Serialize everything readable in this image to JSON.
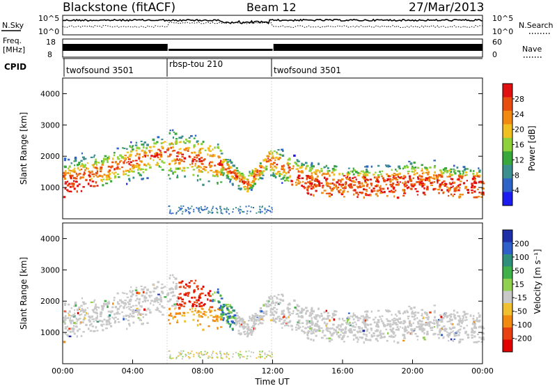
{
  "header": {
    "title": "Blackstone (fitACF)",
    "beam": "Beam 12",
    "date": "27/Mar/2013"
  },
  "chart_data": [
    {
      "type": "line",
      "panel": "noise",
      "labels_left": [
        "N.Sky",
        "10^5",
        "10^0"
      ],
      "labels_right": [
        "10^5",
        "10^0",
        "N.Search"
      ],
      "series": [
        {
          "name": "N.Sky",
          "style": "solid"
        },
        {
          "name": "N.Search",
          "style": "dotted"
        }
      ]
    },
    {
      "type": "line",
      "panel": "frequency",
      "labels_left": [
        "Freq.",
        "[MHz]",
        "18",
        "8"
      ],
      "labels_right": [
        "60",
        "0",
        "Nave"
      ],
      "x": [
        0,
        6.0,
        6.05,
        12.0,
        12.05,
        24
      ],
      "freq_level": [
        "high",
        "high",
        "low",
        "low",
        "high",
        "high"
      ],
      "series": [
        {
          "name": "Nave",
          "style": "dotted"
        }
      ]
    },
    {
      "type": "table",
      "panel": "cpid",
      "label": "CPID",
      "segments": [
        {
          "name": "twofsound 3501",
          "start": 0,
          "end": 6
        },
        {
          "name": "rbsp-tou 210",
          "start": 6,
          "end": 12
        },
        {
          "name": "twofsound 3501",
          "start": 12,
          "end": 24
        }
      ]
    },
    {
      "type": "heatmap",
      "panel": "power",
      "ylabel": "Slant Range [km]",
      "ylim": [
        0,
        4500
      ],
      "yticks": [
        "1000",
        "2000",
        "3000",
        "4000"
      ],
      "colorbar": {
        "label": "Power [dB]",
        "ticks": [
          "4",
          "8",
          "12",
          "16",
          "20",
          "24",
          "28"
        ],
        "colors": [
          "#1c1cf0",
          "#2e64c8",
          "#3d8f8f",
          "#39a83c",
          "#8fd13a",
          "#f0c020",
          "#f08a10",
          "#e84e10",
          "#e01010"
        ]
      }
    },
    {
      "type": "heatmap",
      "panel": "velocity",
      "ylabel": "Slant Range [km]",
      "xlabel": "Time UT",
      "ylim": [
        0,
        4500
      ],
      "yticks": [
        "1000",
        "2000",
        "3000",
        "4000"
      ],
      "xlim": [
        0,
        24
      ],
      "xticks": [
        "00:00",
        "04:00",
        "08:00",
        "12:00",
        "16:00",
        "20:00",
        "00:00"
      ],
      "colorbar": {
        "label": "Velocity [m s⁻¹]",
        "ticks": [
          "200",
          "100",
          "50",
          "15",
          "-15",
          "-50",
          "-100",
          "-200"
        ],
        "colors": [
          "#1e2fa8",
          "#2f5fc8",
          "#2f8f7a",
          "#3fb04a",
          "#90d050",
          "#c8c8c8",
          "#f0c030",
          "#f08a10",
          "#e84010",
          "#e00000"
        ]
      }
    }
  ]
}
